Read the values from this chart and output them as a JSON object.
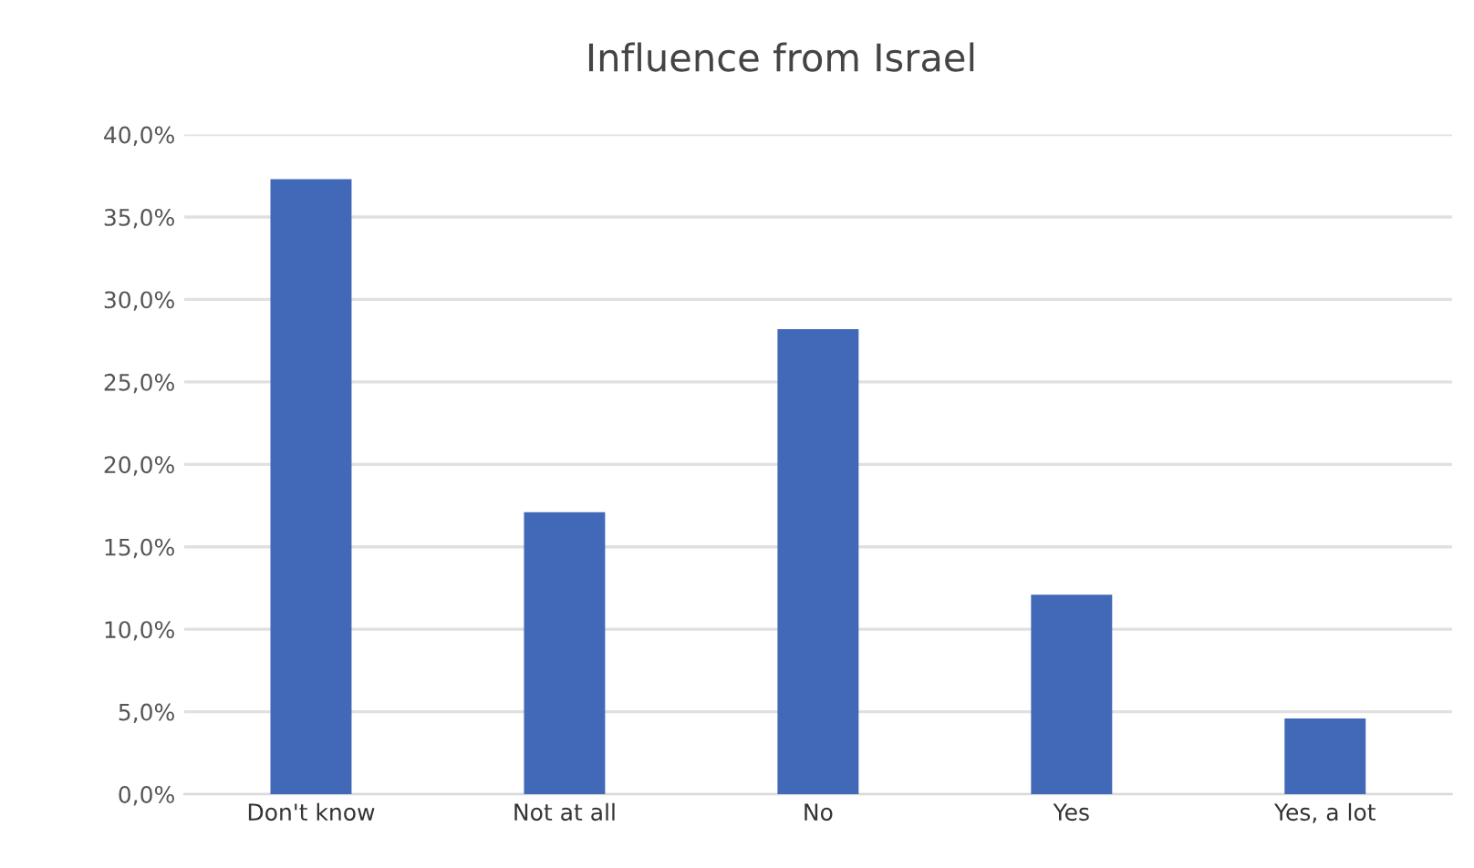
{
  "chart_data": {
    "type": "bar",
    "title": "Influence from Israel",
    "categories": [
      "Don't know",
      "Not at all",
      "No",
      "Yes",
      "Yes, a lot"
    ],
    "values": [
      37.3,
      17.1,
      28.2,
      12.1,
      4.6
    ],
    "color": "#4169b8",
    "ylim": [
      0,
      40
    ],
    "yticks": [
      {
        "value": 0,
        "label": "0,0%"
      },
      {
        "value": 5,
        "label": "5,0%"
      },
      {
        "value": 10,
        "label": "10,0%"
      },
      {
        "value": 15,
        "label": "15,0%"
      },
      {
        "value": 20,
        "label": "20,0%"
      },
      {
        "value": 25,
        "label": "25,0%"
      },
      {
        "value": 30,
        "label": "30,0%"
      },
      {
        "value": 35,
        "label": "35,0%"
      },
      {
        "value": 40,
        "label": "40,0%"
      }
    ],
    "grid": "y",
    "legend": false
  }
}
